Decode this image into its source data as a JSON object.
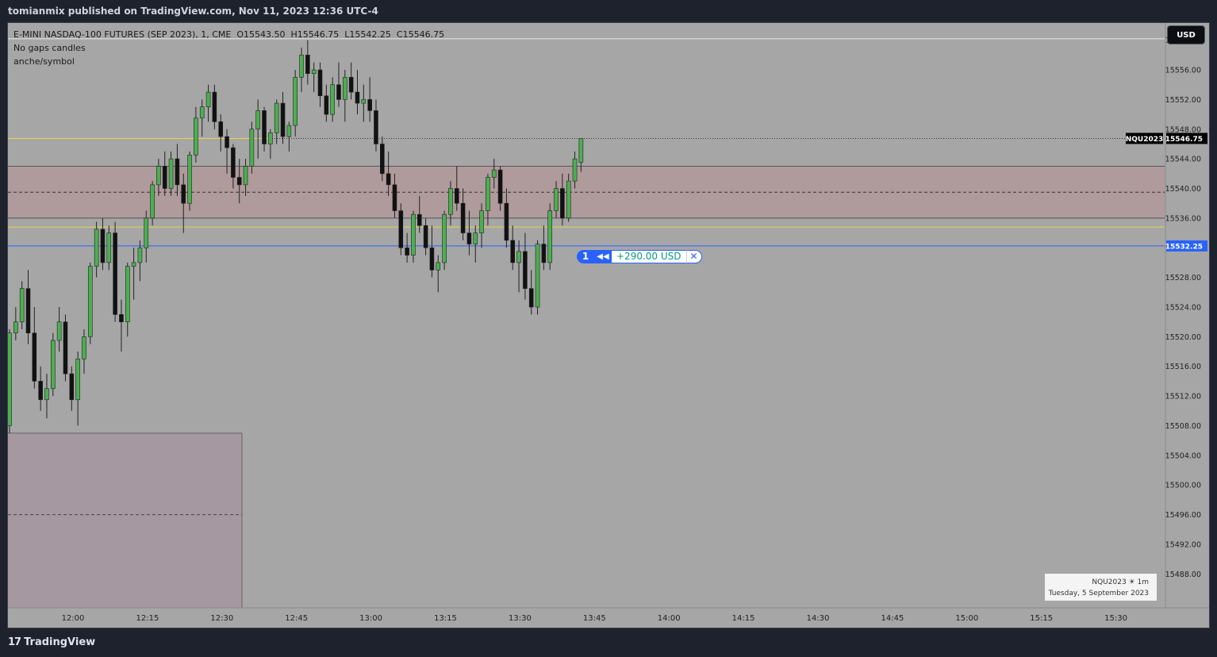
{
  "header": {
    "published": "tomianmix published on TradingView.com, Nov 11, 2023 12:36 UTC-4"
  },
  "legend": {
    "title": "E-MINI NASDAQ-100 FUTURES (SEP 2023), 1, CME",
    "open": "O15543.50",
    "high": "H15546.75",
    "low": "L15542.25",
    "close": "C15546.75",
    "indicator1": "No gaps candles",
    "indicator2": "anche/symbol"
  },
  "currency_button": "USD",
  "price_axis": {
    "ticks": [
      "15560.00",
      "15556.00",
      "15552.00",
      "15548.00",
      "15544.00",
      "15540.00",
      "15536.00",
      "15532.25",
      "15528.00",
      "15524.00",
      "15520.00",
      "15516.00",
      "15512.00",
      "15508.00",
      "15504.00",
      "15500.00",
      "15496.00",
      "15492.00",
      "15488.00"
    ],
    "last_symbol": "NQU2023",
    "last_price": "15546.75",
    "position_price": "15532.25"
  },
  "time_axis": {
    "labels": [
      "12:00",
      "12:15",
      "12:30",
      "12:45",
      "13:00",
      "13:15",
      "13:30",
      "13:45",
      "14:00",
      "14:15",
      "14:30",
      "14:45",
      "15:00",
      "15:15",
      "15:30"
    ]
  },
  "position": {
    "qty": "1",
    "reverse_icon": "reverse-icon",
    "pl": "+290.00 USD",
    "close_icon": "close-icon"
  },
  "symbol_watermark": {
    "symbol": "NQU2023",
    "interval": "1m",
    "date": "Tuesday, 5 September 2023"
  },
  "footer": {
    "brand": "TradingView"
  },
  "colors": {
    "background": "#a6a6a6",
    "bull": "#4caf50",
    "bear": "#111111",
    "zone": "#b0989a",
    "position_line": "#2962ff",
    "yellow_line": "#e8d44d"
  },
  "chart_data": {
    "type": "candlestick",
    "ylim": [
      15486,
      15562
    ],
    "x_labels": [
      "12:00",
      "12:15",
      "12:30",
      "12:45",
      "13:00",
      "13:15",
      "13:30",
      "13:45",
      "14:00",
      "14:15",
      "14:30",
      "14:45",
      "15:00",
      "15:15",
      "15:30"
    ],
    "candles": [
      [
        15508.0,
        15521.0,
        15507.0,
        15520.5
      ],
      [
        15520.5,
        15524.0,
        15519.5,
        15522.0
      ],
      [
        15522.0,
        15527.5,
        15521.0,
        15526.5
      ],
      [
        15526.5,
        15529.0,
        15519.0,
        15520.5
      ],
      [
        15520.5,
        15524.0,
        15513.0,
        15514.0
      ],
      [
        15514.0,
        15516.0,
        15510.0,
        15511.5
      ],
      [
        15511.5,
        15515.0,
        15509.0,
        15513.0
      ],
      [
        15513.0,
        15520.5,
        15512.0,
        15519.5
      ],
      [
        15519.5,
        15524.0,
        15518.0,
        15522.0
      ],
      [
        15522.0,
        15523.0,
        15514.0,
        15515.0
      ],
      [
        15515.0,
        15516.0,
        15510.0,
        15511.5
      ],
      [
        15511.5,
        15518.0,
        15508.0,
        15517.0
      ],
      [
        15517.0,
        15521.0,
        15515.0,
        15520.0
      ],
      [
        15520.0,
        15530.0,
        15519.0,
        15529.5
      ],
      [
        15529.5,
        15535.5,
        15528.0,
        15534.5
      ],
      [
        15534.5,
        15536.0,
        15529.0,
        15530.0
      ],
      [
        15530.0,
        15535.0,
        15529.0,
        15534.0
      ],
      [
        15534.0,
        15535.5,
        15522.0,
        15523.0
      ],
      [
        15523.0,
        15525.0,
        15518.0,
        15522.0
      ],
      [
        15522.0,
        15530.0,
        15520.0,
        15529.5
      ],
      [
        15529.5,
        15532.0,
        15525.0,
        15530.0
      ],
      [
        15530.0,
        15533.0,
        15527.5,
        15532.0
      ],
      [
        15532.0,
        15537.0,
        15530.0,
        15536.0
      ],
      [
        15536.0,
        15541.0,
        15535.0,
        15540.5
      ],
      [
        15540.5,
        15544.0,
        15539.0,
        15543.0
      ],
      [
        15543.0,
        15545.0,
        15539.0,
        15540.0
      ],
      [
        15540.0,
        15545.0,
        15539.0,
        15544.0
      ],
      [
        15544.0,
        15546.0,
        15539.0,
        15540.5
      ],
      [
        15540.5,
        15542.0,
        15534.0,
        15538.0
      ],
      [
        15538.0,
        15545.0,
        15537.0,
        15544.5
      ],
      [
        15544.5,
        15551.0,
        15543.5,
        15549.5
      ],
      [
        15549.5,
        15552.0,
        15547.0,
        15551.0
      ],
      [
        15551.0,
        15554.0,
        15549.0,
        15553.0
      ],
      [
        15553.0,
        15554.0,
        15548.0,
        15549.0
      ],
      [
        15549.0,
        15550.0,
        15545.0,
        15547.0
      ],
      [
        15547.0,
        15548.0,
        15542.0,
        15545.5
      ],
      [
        15545.5,
        15546.0,
        15540.0,
        15541.5
      ],
      [
        15541.5,
        15544.0,
        15538.0,
        15540.5
      ],
      [
        15540.5,
        15544.0,
        15539.0,
        15543.0
      ],
      [
        15543.0,
        15549.0,
        15542.0,
        15548.0
      ],
      [
        15548.0,
        15552.0,
        15544.0,
        15550.5
      ],
      [
        15550.5,
        15551.0,
        15545.0,
        15546.0
      ],
      [
        15546.0,
        15548.0,
        15544.0,
        15547.5
      ],
      [
        15547.5,
        15552.0,
        15546.0,
        15551.5
      ],
      [
        15551.5,
        15553.0,
        15546.0,
        15547.0
      ],
      [
        15547.0,
        15549.0,
        15545.0,
        15548.5
      ],
      [
        15548.5,
        15556.0,
        15547.0,
        15555.0
      ],
      [
        15555.0,
        15559.0,
        15553.0,
        15558.0
      ],
      [
        15558.0,
        15560.0,
        15554.0,
        15555.5
      ],
      [
        15555.5,
        15557.0,
        15553.0,
        15556.0
      ],
      [
        15556.0,
        15557.0,
        15551.0,
        15552.5
      ],
      [
        15552.5,
        15554.0,
        15549.0,
        15550.0
      ],
      [
        15550.0,
        15555.0,
        15549.0,
        15554.0
      ],
      [
        15554.0,
        15557.0,
        15551.0,
        15552.0
      ],
      [
        15552.0,
        15556.0,
        15549.0,
        15555.0
      ],
      [
        15555.0,
        15557.0,
        15552.0,
        15553.0
      ],
      [
        15553.0,
        15556.0,
        15550.0,
        15551.5
      ],
      [
        15551.5,
        15554.0,
        15549.0,
        15552.0
      ],
      [
        15552.0,
        15555.0,
        15549.0,
        15550.5
      ],
      [
        15550.5,
        15552.0,
        15545.0,
        15546.0
      ],
      [
        15546.0,
        15547.0,
        15541.0,
        15542.0
      ],
      [
        15542.0,
        15545.0,
        15539.0,
        15540.5
      ],
      [
        15540.5,
        15542.0,
        15536.0,
        15537.0
      ],
      [
        15537.0,
        15538.0,
        15531.0,
        15532.0
      ],
      [
        15532.0,
        15534.0,
        15530.0,
        15531.0
      ],
      [
        15531.0,
        15537.0,
        15530.0,
        15536.5
      ],
      [
        15536.5,
        15539.0,
        15534.0,
        15535.0
      ],
      [
        15535.0,
        15536.0,
        15531.0,
        15532.0
      ],
      [
        15532.0,
        15535.0,
        15528.0,
        15529.0
      ],
      [
        15529.0,
        15531.0,
        15526.0,
        15530.0
      ],
      [
        15530.0,
        15537.0,
        15529.0,
        15536.5
      ],
      [
        15536.5,
        15541.0,
        15535.0,
        15540.0
      ],
      [
        15540.0,
        15543.0,
        15537.0,
        15538.0
      ],
      [
        15538.0,
        15540.0,
        15533.0,
        15534.0
      ],
      [
        15534.0,
        15537.0,
        15531.0,
        15532.5
      ],
      [
        15532.5,
        15535.0,
        15530.0,
        15534.0
      ],
      [
        15534.0,
        15538.0,
        15532.0,
        15537.0
      ],
      [
        15537.0,
        15542.0,
        15535.0,
        15541.5
      ],
      [
        15541.5,
        15544.0,
        15540.0,
        15542.5
      ],
      [
        15542.5,
        15543.0,
        15537.0,
        15538.0
      ],
      [
        15538.0,
        15540.0,
        15532.0,
        15533.0
      ],
      [
        15533.0,
        15535.0,
        15529.0,
        15530.0
      ],
      [
        15530.0,
        15533.0,
        15526.0,
        15531.5
      ],
      [
        15531.5,
        15534.0,
        15525.0,
        15526.5
      ],
      [
        15526.5,
        15529.0,
        15523.0,
        15524.0
      ],
      [
        15524.0,
        15533.0,
        15523.0,
        15532.5
      ],
      [
        15532.5,
        15535.0,
        15529.0,
        15530.0
      ],
      [
        15530.0,
        15538.0,
        15529.0,
        15537.0
      ],
      [
        15537.0,
        15541.0,
        15536.0,
        15540.0
      ],
      [
        15540.0,
        15542.0,
        15535.0,
        15536.0
      ],
      [
        15536.0,
        15542.0,
        15535.5,
        15541.0
      ],
      [
        15541.0,
        15545.0,
        15540.0,
        15544.0
      ],
      [
        15543.5,
        15546.75,
        15542.25,
        15546.75
      ]
    ],
    "levels": [
      {
        "price": 15546.75,
        "style": "dotted",
        "color": "#333333"
      },
      {
        "price": 15546.75,
        "style": "solid",
        "color": "#e8d44d",
        "extent": "partial"
      },
      {
        "price": 15543.0,
        "style": "solid",
        "color": "#555555"
      },
      {
        "price": 15539.5,
        "style": "dashed",
        "color": "#333333"
      },
      {
        "price": 15536.0,
        "style": "solid",
        "color": "#555555"
      },
      {
        "price": 15534.8,
        "style": "solid",
        "color": "#e8d44d"
      },
      {
        "price": 15532.25,
        "style": "solid",
        "color": "#2962ff"
      }
    ],
    "zones": [
      {
        "top": 15543.0,
        "bottom": 15536.0,
        "color": "#b0989a",
        "extent": "full"
      },
      {
        "top": 15507.0,
        "bottom": 15486.0,
        "mid": 15496.0,
        "color": "#a695a0",
        "extent": "left"
      }
    ]
  }
}
